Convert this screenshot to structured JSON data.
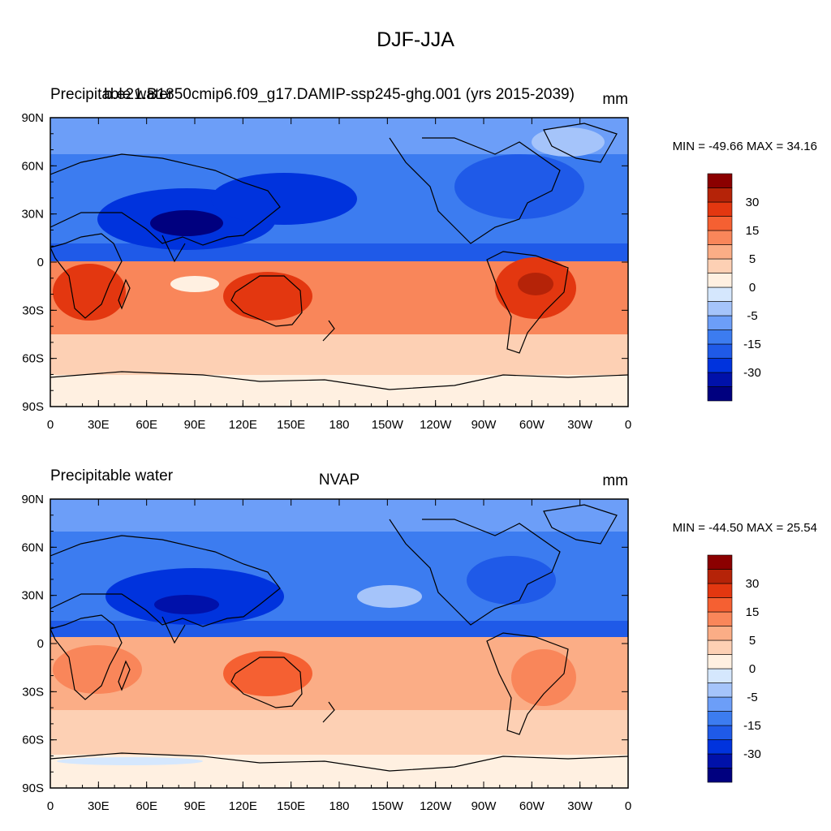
{
  "figure": {
    "title": "DJF-JJA"
  },
  "colorbar": {
    "colors": [
      "#00007f",
      "#0011aa",
      "#0033dd",
      "#1f5ae8",
      "#3c7cf0",
      "#6c9ef8",
      "#a5c4fa",
      "#d5e7fd",
      "#fff0e1",
      "#fdd0b4",
      "#fbad86",
      "#f9865a",
      "#f56032",
      "#e33710",
      "#b52308",
      "#8b0000"
    ],
    "tick_labels": [
      "30",
      "15",
      "5",
      "0",
      "-5",
      "-15",
      "-30"
    ]
  },
  "chart_data": [
    {
      "type": "heatmap",
      "left_title": "Precipitable water",
      "center_title": "b.e21.B1850cmip6.f09_g17.DAMIP-ssp245-ghg.001 (yrs 2015-2039)",
      "units": "mm",
      "stats": "MIN = -49.66 MAX =  34.16",
      "min": -49.66,
      "max": 34.16,
      "x_ticks": [
        "0",
        "30E",
        "60E",
        "90E",
        "120E",
        "150E",
        "180",
        "150W",
        "120W",
        "90W",
        "60W",
        "30W",
        "0"
      ],
      "y_ticks": [
        "90N",
        "60N",
        "30N",
        "0",
        "30S",
        "60S",
        "90S"
      ],
      "xlim": [
        0,
        360
      ],
      "ylim": [
        -90,
        90
      ]
    },
    {
      "type": "heatmap",
      "left_title": "Precipitable water",
      "center_title": "NVAP",
      "units": "mm",
      "stats": "MIN = -44.50 MAX =  25.54",
      "min": -44.5,
      "max": 25.54,
      "x_ticks": [
        "0",
        "30E",
        "60E",
        "90E",
        "120E",
        "150E",
        "180",
        "150W",
        "120W",
        "90W",
        "60W",
        "30W",
        "0"
      ],
      "y_ticks": [
        "90N",
        "60N",
        "30N",
        "0",
        "30S",
        "60S",
        "90S"
      ],
      "xlim": [
        0,
        360
      ],
      "ylim": [
        -90,
        90
      ]
    }
  ]
}
